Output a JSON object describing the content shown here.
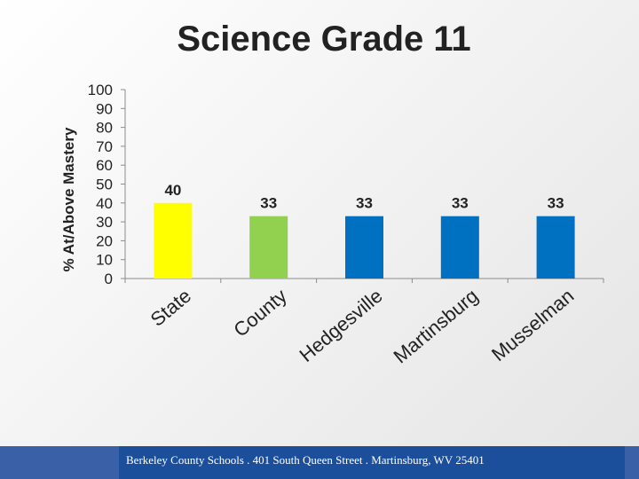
{
  "chart_data": {
    "type": "bar",
    "title": "Science Grade 11",
    "ylabel": "% At/Above Mastery",
    "xlabel": "",
    "categories": [
      "State",
      "County",
      "Hedgesville",
      "Martinsburg",
      "Musselman"
    ],
    "values": [
      40,
      33,
      33,
      33,
      33
    ],
    "bar_colors": [
      "#ffff00",
      "#92d050",
      "#0070c0",
      "#0070c0",
      "#0070c0"
    ],
    "ylim": [
      0,
      100
    ],
    "yticks": [
      0,
      10,
      20,
      30,
      40,
      50,
      60,
      70,
      80,
      90,
      100
    ],
    "grid": false,
    "legend": "none"
  },
  "footer": {
    "text": "Berkeley County Schools . 401 South Queen Street . Martinsburg, WV  25401"
  }
}
